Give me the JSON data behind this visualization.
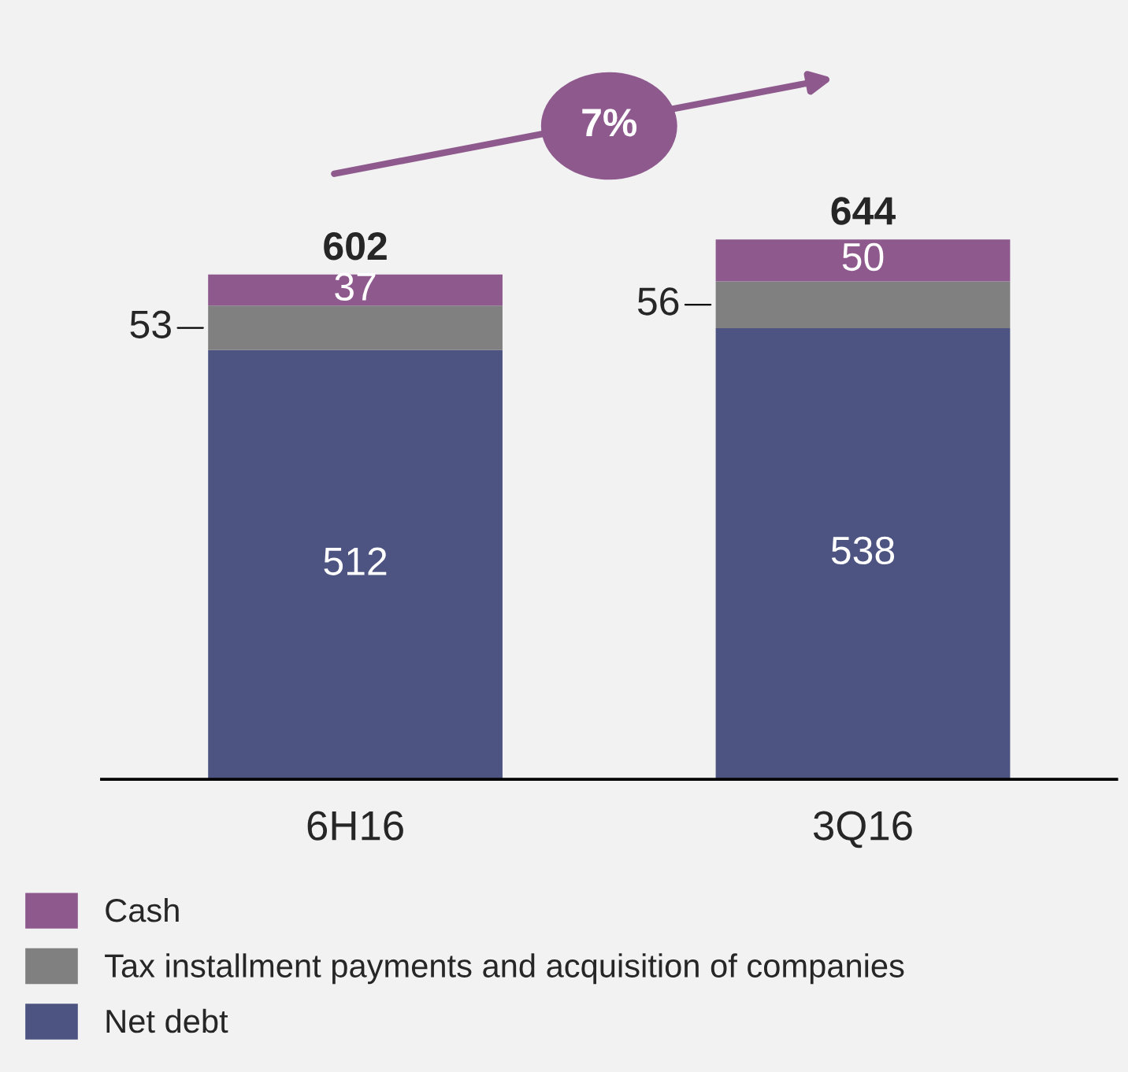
{
  "chart_data": {
    "type": "bar",
    "stacked": true,
    "categories": [
      "6H16",
      "3Q16"
    ],
    "series": [
      {
        "name": "Net debt",
        "color": "#4d5482",
        "values": [
          512,
          538
        ]
      },
      {
        "name": "Tax installment payments and acquisition of companies",
        "color": "#808080",
        "values": [
          53,
          56
        ]
      },
      {
        "name": "Cash",
        "color": "#8e5a8e",
        "values": [
          37,
          50
        ]
      }
    ],
    "data_labels": true,
    "totals": [
      "602",
      "644"
    ],
    "annotations": [
      "7%"
    ],
    "legend": "bottom left",
    "tick_labels": "x",
    "grid": false
  }
}
